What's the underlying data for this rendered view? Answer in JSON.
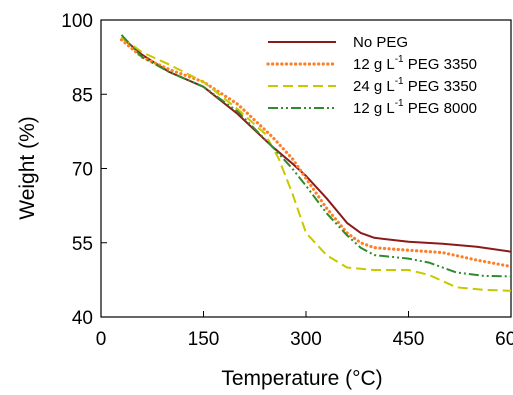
{
  "chart_data": {
    "type": "line",
    "title": "",
    "xlabel": "Temperature (°C)",
    "ylabel": "Weight (%)",
    "xlim": [
      0,
      600
    ],
    "ylim": [
      40,
      100
    ],
    "xticks": [
      0,
      150,
      300,
      450,
      600
    ],
    "yticks": [
      40,
      55,
      70,
      85,
      100
    ],
    "grid": false,
    "legend_position": "top-right",
    "series": [
      {
        "name": "No PEG",
        "legend_parts": [
          "No PEG",
          "",
          ""
        ],
        "color": "#8b1a1a",
        "dash": "solid",
        "x": [
          30,
          60,
          100,
          150,
          200,
          250,
          280,
          300,
          330,
          360,
          380,
          400,
          450,
          500,
          550,
          600
        ],
        "y": [
          96.5,
          93,
          89.5,
          86.5,
          81,
          74.5,
          71,
          68.5,
          64,
          59,
          57,
          56,
          55.2,
          54.8,
          54.2,
          53.2
        ]
      },
      {
        "name": "12 g L-1 PEG 3350",
        "legend_parts": [
          "12 g L",
          "-1",
          " PEG 3350"
        ],
        "color": "#ff7f27",
        "dash": "dotted",
        "x": [
          30,
          60,
          100,
          150,
          200,
          250,
          280,
          300,
          330,
          360,
          380,
          400,
          450,
          500,
          550,
          600
        ],
        "y": [
          96,
          92.5,
          90,
          87.5,
          83,
          76.5,
          72,
          68,
          62,
          57,
          55,
          54,
          53.5,
          53,
          51.5,
          50.2
        ]
      },
      {
        "name": "24 g L-1 PEG 3350",
        "legend_parts": [
          "24 g L",
          "-1",
          " PEG 3350"
        ],
        "color": "#c8c800",
        "dash": "dashed",
        "x": [
          30,
          60,
          100,
          150,
          200,
          240,
          260,
          280,
          300,
          330,
          360,
          400,
          450,
          480,
          520,
          560,
          600
        ],
        "y": [
          96.5,
          93.5,
          91,
          87.5,
          82,
          77,
          72,
          65,
          57,
          52.5,
          50,
          49.5,
          49.5,
          48.5,
          46,
          45.5,
          45.3
        ]
      },
      {
        "name": "12 g L-1 PEG 8000",
        "legend_parts": [
          "12 g L",
          "-1",
          " PEG 8000"
        ],
        "color": "#2e8b2e",
        "dash": "dashdotdot",
        "x": [
          30,
          60,
          100,
          150,
          200,
          250,
          280,
          300,
          330,
          360,
          380,
          400,
          450,
          480,
          520,
          560,
          600
        ],
        "y": [
          97,
          92.5,
          89.5,
          86.5,
          81.5,
          74.5,
          70,
          66.5,
          61,
          56.5,
          54,
          52.5,
          51.8,
          51,
          49,
          48.3,
          48.2
        ]
      }
    ]
  }
}
